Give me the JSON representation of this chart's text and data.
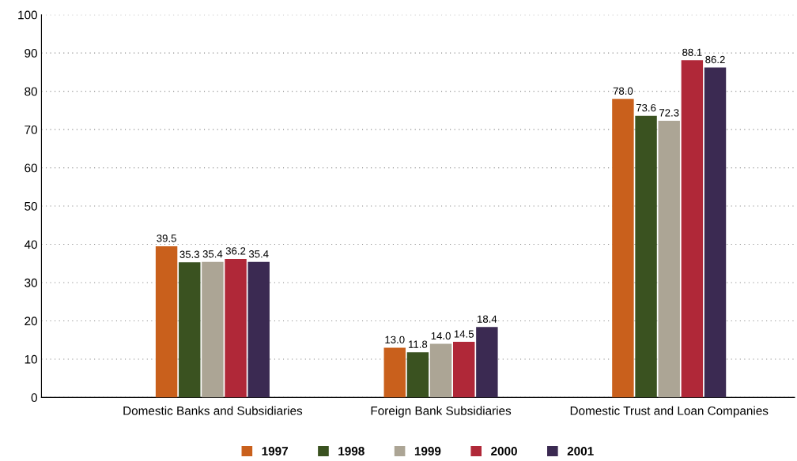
{
  "chart_data": {
    "type": "bar",
    "categories": [
      "Domestic Banks and Subsidiaries",
      "Foreign Bank Subsidiaries",
      "Domestic Trust and Loan Companies"
    ],
    "series": [
      {
        "name": "1997",
        "color": "#c9601c",
        "values": [
          39.5,
          13.0,
          78.0
        ]
      },
      {
        "name": "1998",
        "color": "#3a5220",
        "values": [
          35.3,
          11.8,
          73.6
        ]
      },
      {
        "name": "1999",
        "color": "#aca595",
        "values": [
          35.4,
          14.0,
          72.3
        ]
      },
      {
        "name": "2000",
        "color": "#b02838",
        "values": [
          36.2,
          14.5,
          88.1
        ]
      },
      {
        "name": "2001",
        "color": "#3b2a52",
        "values": [
          35.4,
          18.4,
          86.2
        ]
      }
    ],
    "value_labels": [
      [
        "39.5",
        "13.0",
        "78.0"
      ],
      [
        "35.3",
        "11.8",
        "73.6"
      ],
      [
        "35.4",
        "14.0",
        "72.3"
      ],
      [
        "36.2",
        "14.5",
        "88.1"
      ],
      [
        "35.4",
        "18.4",
        "86.2"
      ]
    ],
    "ylim": [
      0,
      100
    ],
    "yticks": [
      0,
      10,
      20,
      30,
      40,
      50,
      60,
      70,
      80,
      90,
      100
    ],
    "grid": "y",
    "legend": "bottom"
  }
}
